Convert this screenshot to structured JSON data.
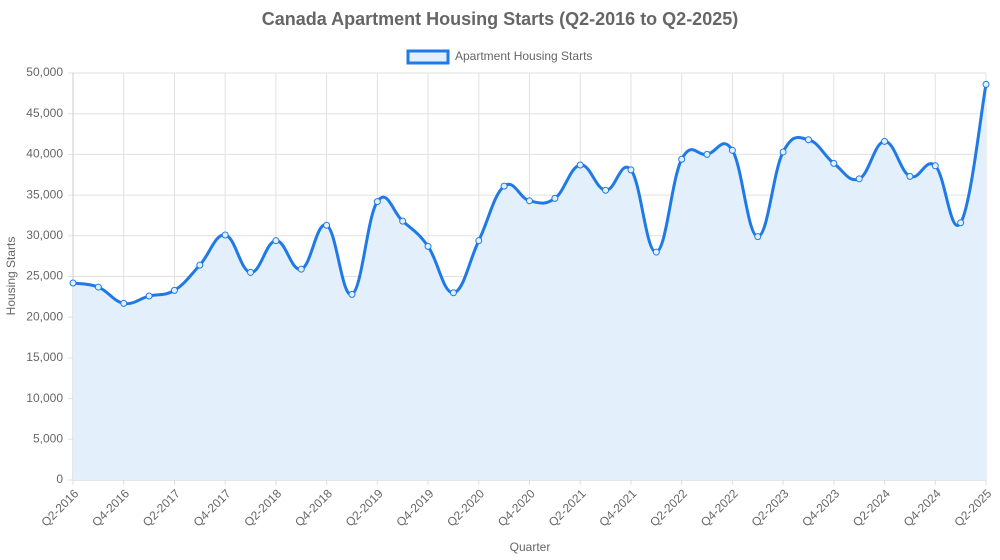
{
  "chart_data": {
    "type": "line",
    "title": "Canada Apartment Housing Starts (Q2-2016 to Q2-2025)",
    "x_label": "Quarter",
    "y_label": "Housing Starts",
    "categories": [
      "Q2-2016",
      null,
      "Q4-2016",
      null,
      "Q2-2017",
      null,
      "Q4-2017",
      null,
      "Q2-2018",
      null,
      "Q4-2018",
      null,
      "Q2-2019",
      null,
      "Q4-2019",
      null,
      "Q2-2020",
      null,
      "Q4-2020",
      null,
      "Q2-2021",
      null,
      "Q4-2021",
      null,
      "Q2-2022",
      null,
      "Q4-2022",
      null,
      "Q2-2023",
      null,
      "Q4-2023",
      null,
      "Q2-2024",
      null,
      "Q4-2024",
      null,
      "Q2-2025"
    ],
    "series": [
      {
        "name": "Apartment Housing Starts",
        "color": "#1f7ae8",
        "fill_color": "#e3f0fc",
        "values": [
          24200,
          23700,
          21700,
          22600,
          23300,
          26400,
          30100,
          25500,
          29400,
          25900,
          31300,
          22800,
          34200,
          31800,
          28700,
          23000,
          29400,
          36100,
          34300,
          34600,
          38700,
          35600,
          38100,
          28000,
          39400,
          40000,
          40500,
          29900,
          40300,
          41800,
          38900,
          37000,
          41600,
          37300,
          38600,
          31600,
          48600
        ]
      }
    ],
    "ylim": [
      0,
      50000
    ],
    "yticks": [
      0,
      {
        "value": 5000,
        "label": "5,000"
      },
      {
        "value": 10000,
        "label": "10,000"
      },
      {
        "value": 15000,
        "label": "15,000"
      },
      {
        "value": 20000,
        "label": "20,000"
      },
      {
        "value": 25000,
        "label": "25,000"
      },
      {
        "value": 30000,
        "label": "30,000"
      },
      {
        "value": 35000,
        "label": "35,000"
      },
      {
        "value": 40000,
        "label": "40,000"
      },
      {
        "value": 45000,
        "label": "45,000"
      },
      {
        "value": 50000,
        "label": "50,000"
      }
    ],
    "grid": true,
    "area": true,
    "legend": "top"
  }
}
